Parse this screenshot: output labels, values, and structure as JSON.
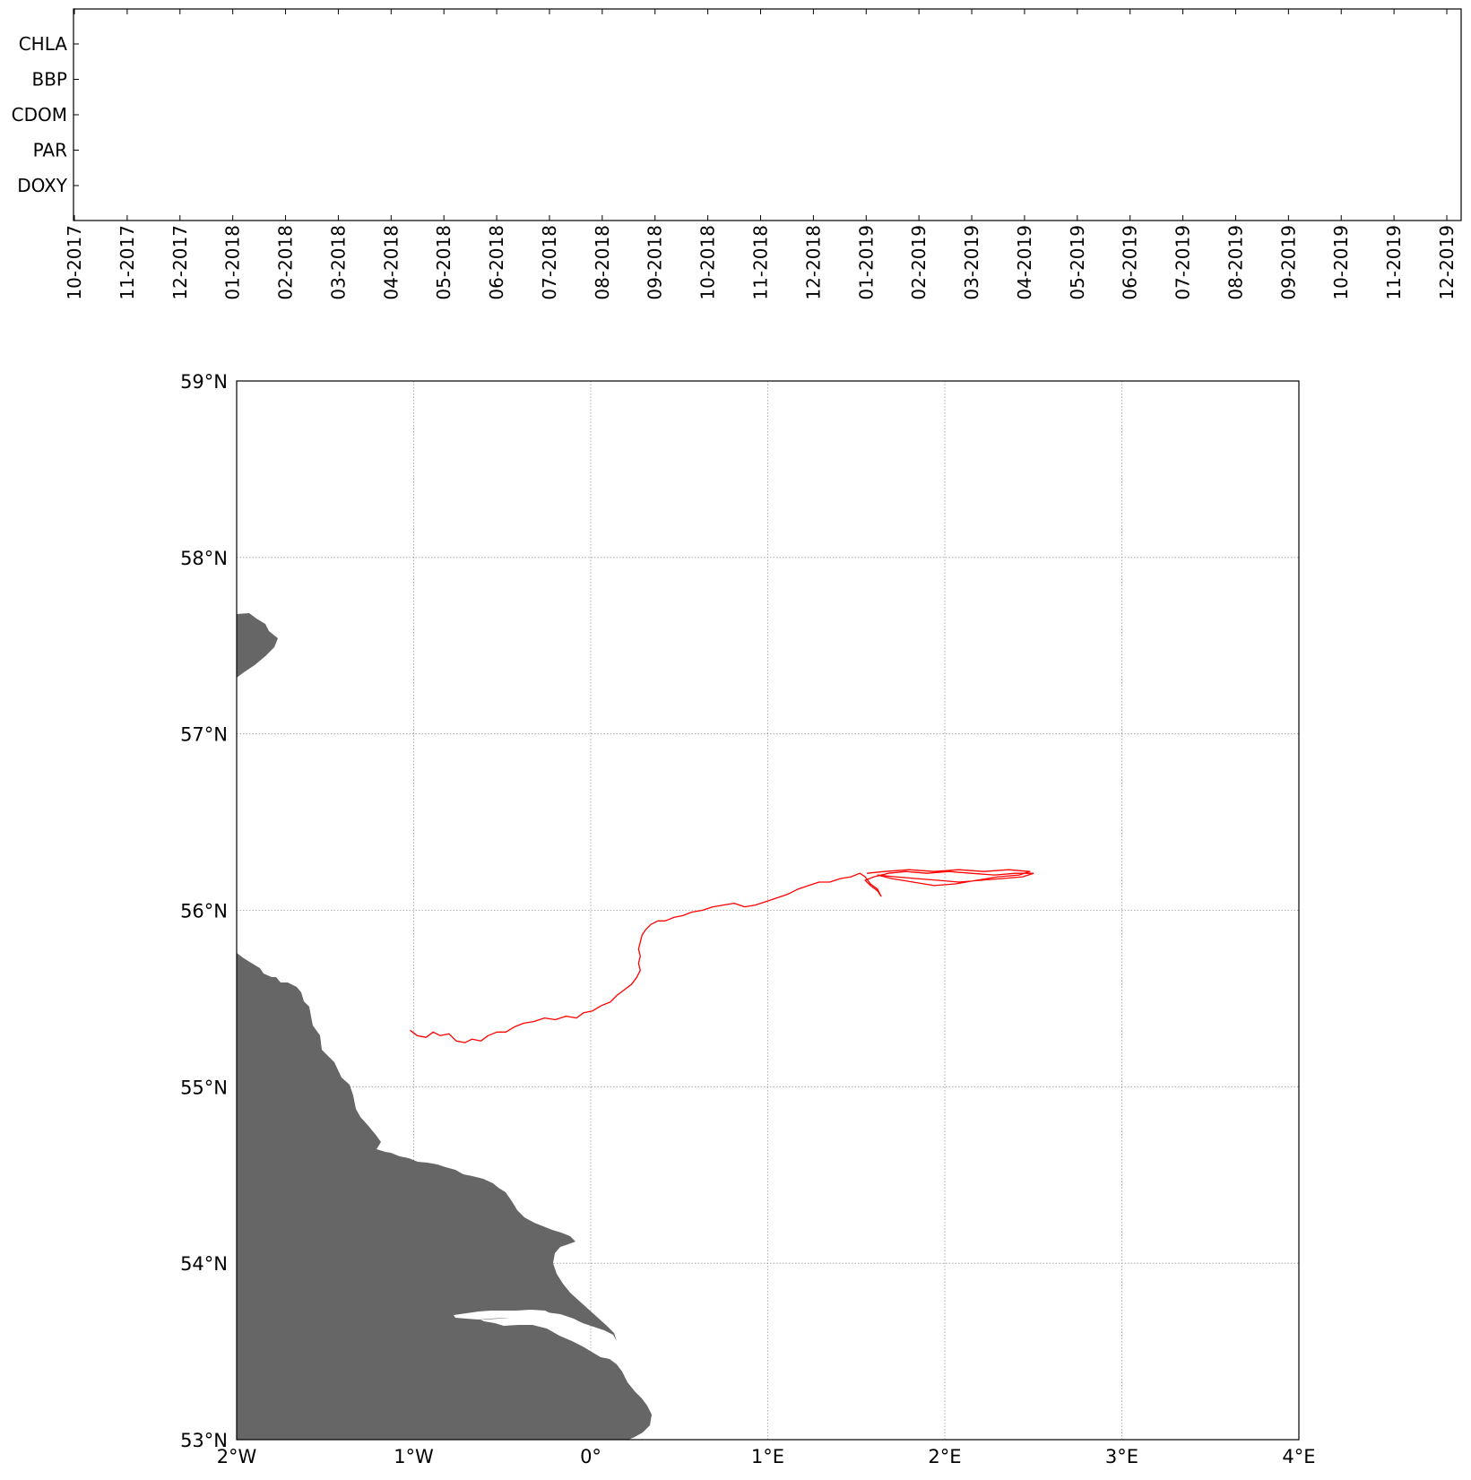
{
  "timeline": {
    "params": [
      "CHLA",
      "BBP",
      "CDOM",
      "PAR",
      "DOXY"
    ],
    "months": [
      "10-2017",
      "11-2017",
      "12-2017",
      "01-2018",
      "02-2018",
      "03-2018",
      "04-2018",
      "05-2018",
      "06-2018",
      "07-2018",
      "08-2018",
      "09-2018",
      "10-2018",
      "11-2018",
      "12-2018",
      "01-2019",
      "02-2019",
      "03-2019",
      "04-2019",
      "05-2019",
      "06-2019",
      "07-2019",
      "08-2019",
      "09-2019",
      "10-2019",
      "11-2019",
      "12-2019"
    ]
  },
  "map": {
    "lat_labels": [
      "59°N",
      "58°N",
      "57°N",
      "56°N",
      "55°N",
      "54°N",
      "53°N"
    ],
    "lon_labels": [
      "2°W",
      "1°W",
      "0°",
      "1°E",
      "2°E",
      "3°E",
      "4°E"
    ],
    "lon_range": [
      -2,
      4
    ],
    "lat_range": [
      53,
      59
    ],
    "land_color": "#666666",
    "track_color": "#ff0000",
    "grid": true,
    "track": [
      [
        -1.02,
        55.32
      ],
      [
        -0.98,
        55.29
      ],
      [
        -0.93,
        55.28
      ],
      [
        -0.89,
        55.31
      ],
      [
        -0.85,
        55.29
      ],
      [
        -0.8,
        55.3
      ],
      [
        -0.76,
        55.26
      ],
      [
        -0.71,
        55.25
      ],
      [
        -0.67,
        55.27
      ],
      [
        -0.62,
        55.26
      ],
      [
        -0.58,
        55.29
      ],
      [
        -0.53,
        55.31
      ],
      [
        -0.48,
        55.31
      ],
      [
        -0.43,
        55.34
      ],
      [
        -0.38,
        55.36
      ],
      [
        -0.32,
        55.37
      ],
      [
        -0.26,
        55.39
      ],
      [
        -0.2,
        55.38
      ],
      [
        -0.14,
        55.4
      ],
      [
        -0.08,
        55.39
      ],
      [
        -0.04,
        55.42
      ],
      [
        0.01,
        55.43
      ],
      [
        0.06,
        55.46
      ],
      [
        0.11,
        55.48
      ],
      [
        0.15,
        55.52
      ],
      [
        0.19,
        55.55
      ],
      [
        0.23,
        55.58
      ],
      [
        0.26,
        55.62
      ],
      [
        0.28,
        55.66
      ],
      [
        0.27,
        55.7
      ],
      [
        0.28,
        55.74
      ],
      [
        0.27,
        55.78
      ],
      [
        0.28,
        55.82
      ],
      [
        0.29,
        55.86
      ],
      [
        0.31,
        55.89
      ],
      [
        0.34,
        55.92
      ],
      [
        0.38,
        55.94
      ],
      [
        0.42,
        55.94
      ],
      [
        0.47,
        55.96
      ],
      [
        0.52,
        55.97
      ],
      [
        0.57,
        55.99
      ],
      [
        0.63,
        56.0
      ],
      [
        0.69,
        56.02
      ],
      [
        0.75,
        56.03
      ],
      [
        0.81,
        56.04
      ],
      [
        0.87,
        56.02
      ],
      [
        0.93,
        56.03
      ],
      [
        0.99,
        56.05
      ],
      [
        1.05,
        56.07
      ],
      [
        1.11,
        56.09
      ],
      [
        1.17,
        56.12
      ],
      [
        1.23,
        56.14
      ],
      [
        1.29,
        56.16
      ],
      [
        1.35,
        56.16
      ],
      [
        1.41,
        56.18
      ],
      [
        1.47,
        56.19
      ],
      [
        1.52,
        56.21
      ],
      [
        1.55,
        56.19
      ],
      [
        1.58,
        56.15
      ],
      [
        1.62,
        56.12
      ],
      [
        1.64,
        56.08
      ],
      [
        1.62,
        56.11
      ],
      [
        1.58,
        56.14
      ],
      [
        1.55,
        56.17
      ],
      [
        1.6,
        56.19
      ],
      [
        1.68,
        56.21
      ],
      [
        1.78,
        56.22
      ],
      [
        1.9,
        56.21
      ],
      [
        2.02,
        56.22
      ],
      [
        2.15,
        56.21
      ],
      [
        2.28,
        56.2
      ],
      [
        2.4,
        56.21
      ],
      [
        2.5,
        56.21
      ],
      [
        2.44,
        56.19
      ],
      [
        2.32,
        56.18
      ],
      [
        2.2,
        56.17
      ],
      [
        2.08,
        56.16
      ],
      [
        1.96,
        56.17
      ],
      [
        1.84,
        56.18
      ],
      [
        1.72,
        56.19
      ],
      [
        1.62,
        56.2
      ],
      [
        1.7,
        56.18
      ],
      [
        1.82,
        56.16
      ],
      [
        1.94,
        56.14
      ],
      [
        2.06,
        56.15
      ],
      [
        2.18,
        56.17
      ],
      [
        2.3,
        56.19
      ],
      [
        2.42,
        56.2
      ],
      [
        2.48,
        56.22
      ],
      [
        2.36,
        56.23
      ],
      [
        2.22,
        56.22
      ],
      [
        2.08,
        56.23
      ],
      [
        1.94,
        56.22
      ],
      [
        1.8,
        56.23
      ],
      [
        1.66,
        56.22
      ],
      [
        1.56,
        56.21
      ]
    ]
  }
}
